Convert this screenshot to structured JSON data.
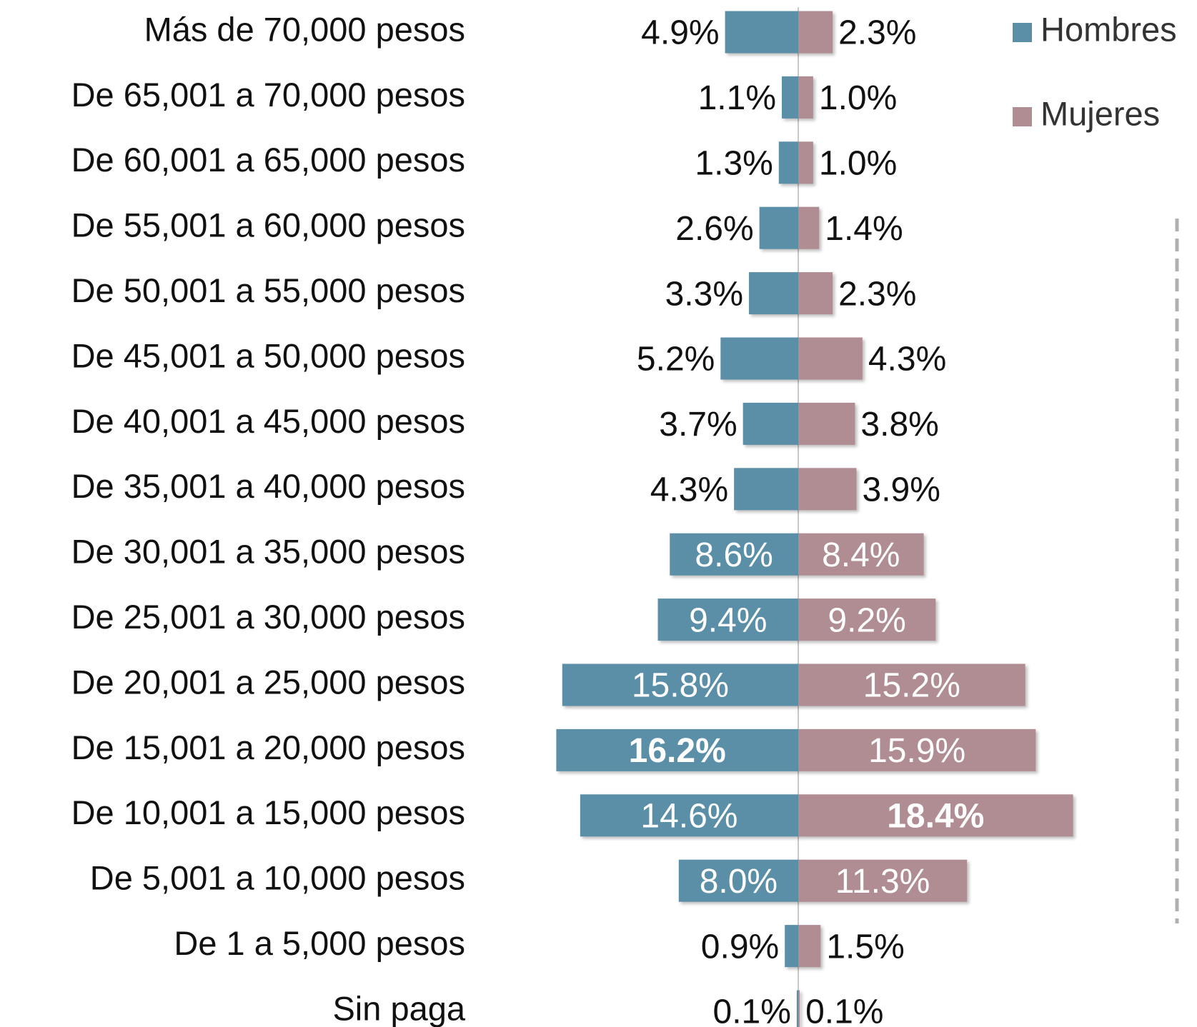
{
  "chart_data": {
    "type": "bar",
    "orientation": "horizontal",
    "layout": "diverging",
    "categories": [
      "Más de 70,000 pesos",
      "De 65,001 a 70,000 pesos",
      "De 60,001 a 65,000 pesos",
      "De 55,001 a 60,000 pesos",
      "De 50,001 a 55,000 pesos",
      "De 45,001 a 50,000 pesos",
      "De 40,001 a 45,000 pesos",
      "De 35,001 a 40,000 pesos",
      "De 30,001 a 35,000 pesos",
      "De 25,001 a 30,000 pesos",
      "De 20,001 a 25,000 pesos",
      "De 15,001 a 20,000 pesos",
      "De 10,001 a 15,000 pesos",
      "De 5,001 a 10,000 pesos",
      "De 1 a 5,000 pesos",
      "Sin paga"
    ],
    "series": [
      {
        "name": "Hombres",
        "color": "#5b8fa8",
        "values": [
          4.9,
          1.1,
          1.3,
          2.6,
          3.3,
          5.2,
          3.7,
          4.3,
          8.6,
          9.4,
          15.8,
          16.2,
          14.6,
          8.0,
          0.9,
          0.1
        ],
        "value_labels": [
          "4.9%",
          "1.1%",
          "1.3%",
          "2.6%",
          "3.3%",
          "5.2%",
          "3.7%",
          "4.3%",
          "8.6%",
          "9.4%",
          "15.8%",
          "16.2%",
          "14.6%",
          "8.0%",
          "0.9%",
          "0.1%"
        ]
      },
      {
        "name": "Mujeres",
        "color": "#b08d93",
        "values": [
          2.3,
          1.0,
          1.0,
          1.4,
          2.3,
          4.3,
          3.8,
          3.9,
          8.4,
          9.2,
          15.2,
          15.9,
          18.4,
          11.3,
          1.5,
          0.1
        ],
        "value_labels": [
          "2.3%",
          "1.0%",
          "1.0%",
          "1.4%",
          "2.3%",
          "4.3%",
          "3.8%",
          "3.9%",
          "8.4%",
          "9.2%",
          "15.2%",
          "15.9%",
          "18.4%",
          "11.3%",
          "1.5%",
          "0.1%"
        ]
      }
    ],
    "legend": "top-right"
  }
}
